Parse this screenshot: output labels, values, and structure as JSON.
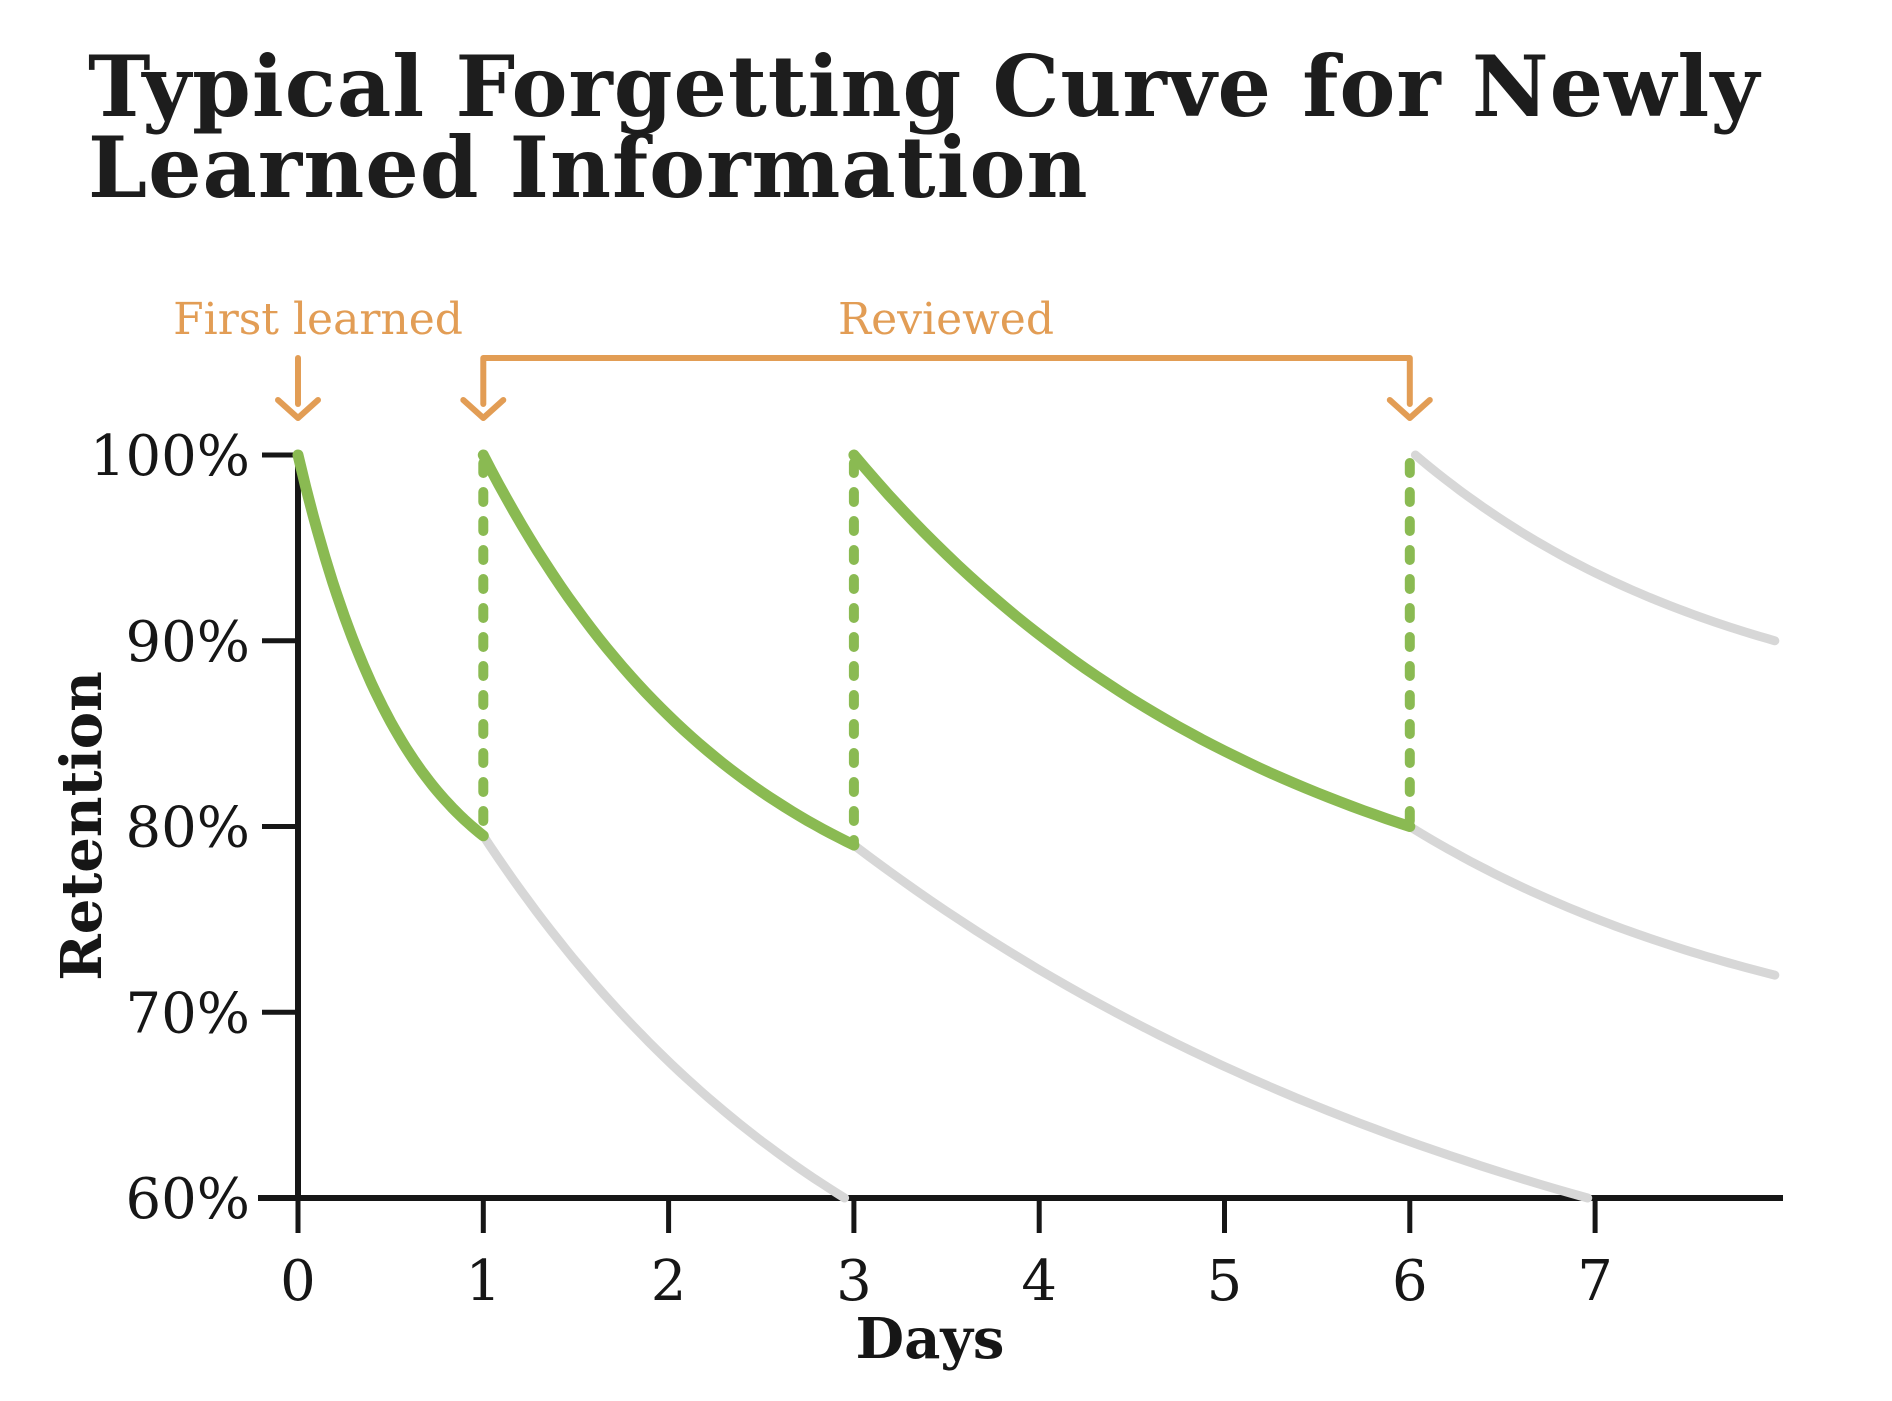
{
  "header": {
    "title_lines": [
      "Typical Forgetting Curve for Newly",
      "Learned Information"
    ]
  },
  "colors": {
    "green": "#8aba52",
    "gray": "#d7d7d7",
    "orange": "#e29d55",
    "ink": "#161616"
  },
  "annotations": {
    "first_learned": {
      "label": "First learned",
      "day": 0
    },
    "reviewed": {
      "label": "Reviewed",
      "from_day": 1,
      "to_day": 6
    }
  },
  "chart_data": {
    "type": "line",
    "title": "Typical Forgetting Curve for Newly Learned Information",
    "xlabel": "Days",
    "ylabel": "Retention",
    "xlim": [
      0,
      8
    ],
    "ylim": [
      60,
      100
    ],
    "grid": false,
    "legend": false,
    "x_ticks": [
      0,
      1,
      2,
      3,
      4,
      5,
      6,
      7
    ],
    "y_ticks": [
      {
        "value": 100,
        "label": "100%"
      },
      {
        "value": 90,
        "label": "90%"
      },
      {
        "value": 80,
        "label": "80%"
      },
      {
        "value": 70,
        "label": "70%"
      },
      {
        "value": 60,
        "label": "60%"
      }
    ],
    "series": [
      {
        "name": "first-learning-decay",
        "color": "green",
        "style": "solid",
        "curvature": 1.7,
        "points": [
          [
            0,
            100
          ],
          [
            1,
            79.5
          ]
        ]
      },
      {
        "name": "no-review-decay-1",
        "color": "gray",
        "style": "solid",
        "curvature": 0.9,
        "points": [
          [
            1,
            79.5
          ],
          [
            2.95,
            60
          ]
        ]
      },
      {
        "name": "after-review-1-decay",
        "color": "green",
        "style": "solid",
        "curvature": 1.4,
        "points": [
          [
            1,
            100
          ],
          [
            3,
            79
          ]
        ]
      },
      {
        "name": "no-review-decay-2",
        "color": "gray",
        "style": "solid",
        "curvature": 1.0,
        "points": [
          [
            3,
            79
          ],
          [
            6.96,
            60
          ]
        ]
      },
      {
        "name": "after-review-2-decay",
        "color": "green",
        "style": "solid",
        "curvature": 1.3,
        "points": [
          [
            3,
            100
          ],
          [
            6,
            80
          ]
        ]
      },
      {
        "name": "no-review-decay-3",
        "color": "gray",
        "style": "solid",
        "curvature": 0.9,
        "points": [
          [
            6,
            80
          ],
          [
            7.97,
            72
          ]
        ]
      },
      {
        "name": "after-review-3-decay",
        "color": "gray",
        "style": "solid",
        "curvature": 1.1,
        "points": [
          [
            6.03,
            100
          ],
          [
            7.97,
            90
          ]
        ]
      }
    ],
    "review_jumps": [
      {
        "day": 1,
        "from": 79.5,
        "to": 100
      },
      {
        "day": 3,
        "from": 79,
        "to": 100
      },
      {
        "day": 6,
        "from": 80,
        "to": 100
      }
    ]
  }
}
